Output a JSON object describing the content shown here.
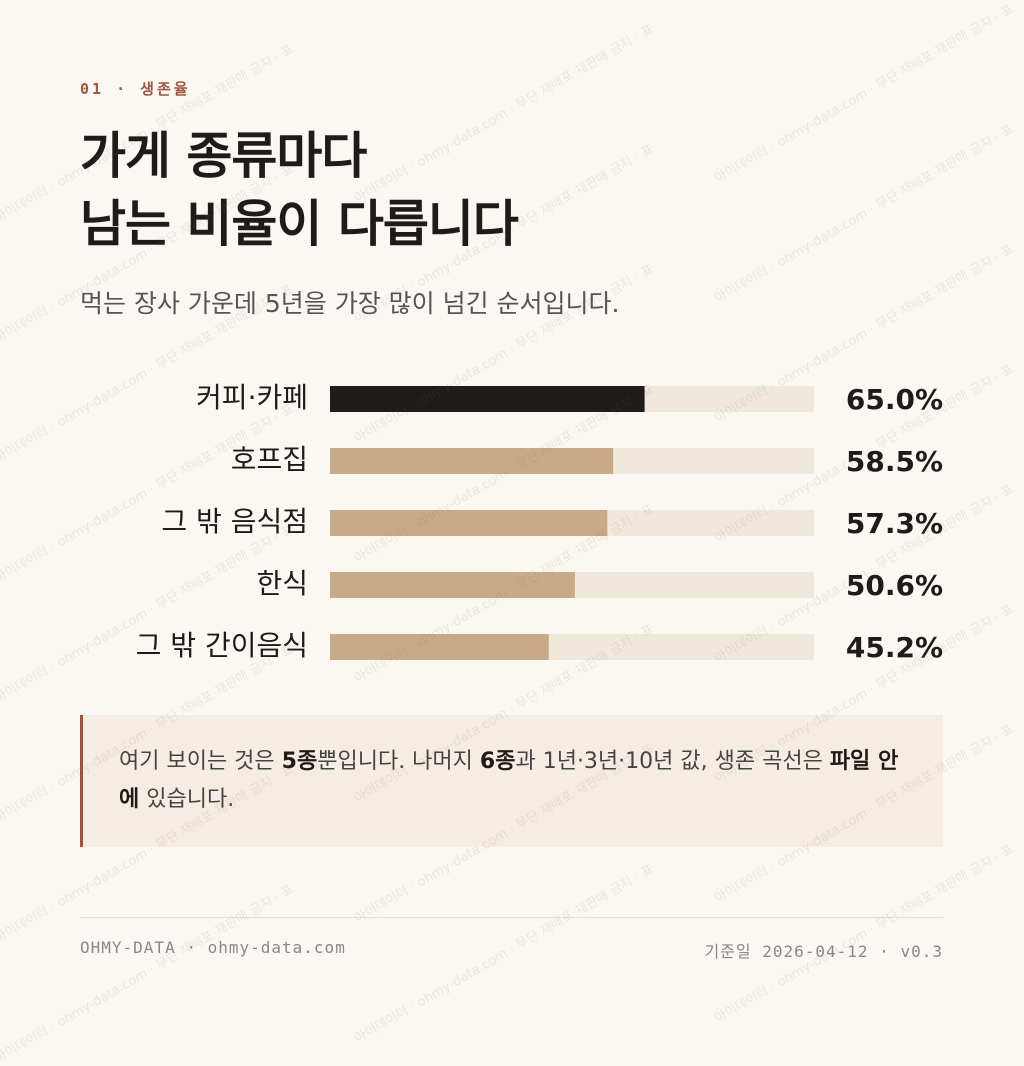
{
  "header": {
    "kicker": "01 · 생존율",
    "title_lines": [
      "가게 종류마다",
      "남는 비율이 다릅니다"
    ],
    "subtitle": "먹는 장사 가운데 5년을 가장 많이 넘긴 순서입니다."
  },
  "chart_data": {
    "type": "bar",
    "orientation": "horizontal",
    "categories": [
      "커피·카페",
      "호프집",
      "그 밖 음식점",
      "한식",
      "그 밖 간이음식"
    ],
    "values": [
      65.0,
      58.5,
      57.3,
      50.6,
      45.2
    ],
    "value_labels": [
      "65.0%",
      "58.5%",
      "57.3%",
      "50.6%",
      "45.2%"
    ],
    "colors": [
      "#1f1b18",
      "#c8aa88",
      "#c8aa88",
      "#c8aa88",
      "#c8aa88"
    ],
    "track_color": "#f1e8dc",
    "xlim": [
      0,
      100
    ]
  },
  "note": {
    "runs": [
      {
        "text": "여기 보이는 것은 "
      },
      {
        "text": "5종",
        "bold": true
      },
      {
        "text": "뿐입니다. 나머지 "
      },
      {
        "text": "6종",
        "bold": true
      },
      {
        "text": "과 1년·3년·10년 값, 생존 곡선은 "
      },
      {
        "text": "파일 안에",
        "bold": true
      },
      {
        "text": " 있습니다."
      }
    ]
  },
  "footer": {
    "left": "OHMY-DATA · ohmy-data.com",
    "right": "기준일 2026-04-12 · v0.3"
  },
  "watermark": "아이데이터 · ohmy-data.com · 무단 재배포·재판매 금지 · 표"
}
